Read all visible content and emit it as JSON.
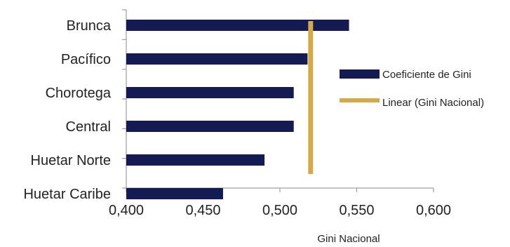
{
  "chart_data": {
    "type": "bar",
    "orientation": "horizontal",
    "categories": [
      "Brunca",
      "Pacífico",
      "Chorotega",
      "Central",
      "Huetar Norte",
      "Huetar Caribe"
    ],
    "series": [
      {
        "name": "Coeficiente de Gini",
        "values": [
          0.545,
          0.518,
          0.509,
          0.509,
          0.49,
          0.463
        ],
        "color": "#141a52"
      }
    ],
    "reference_line": {
      "name": "Linear (Gini Nacional)",
      "value": 0.52,
      "color": "#d4a94b"
    },
    "xlim": [
      0.4,
      0.6
    ],
    "xticks": [
      "0,400",
      "0,450",
      "0,500",
      "0,550",
      "0,600"
    ],
    "xlabel": "Gini Nacional",
    "legend_position": "right",
    "grid": false
  }
}
